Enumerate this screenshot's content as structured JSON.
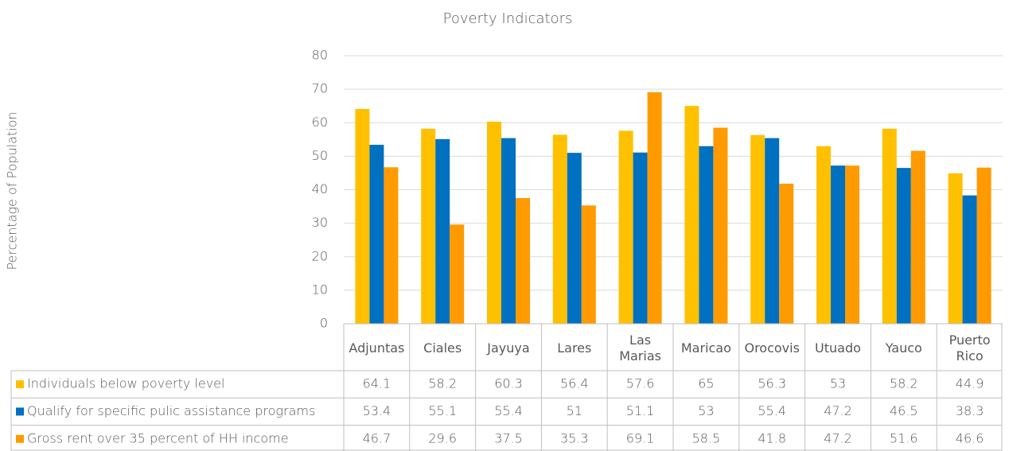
{
  "chart_data": {
    "type": "bar",
    "title": "Poverty Indicators",
    "y_label": "Percentage of Population",
    "categories": [
      "Adjuntas",
      "Ciales",
      "Jayuya",
      "Lares",
      "Las Marias",
      "Maricao",
      "Orocovis",
      "Utuado",
      "Yauco",
      "Puerto Rico"
    ],
    "series": [
      {
        "name": "Individuals below poverty level",
        "color": "#ffc000",
        "values": [
          64.1,
          58.2,
          60.3,
          56.4,
          57.6,
          65,
          56.3,
          53,
          58.2,
          44.9
        ]
      },
      {
        "name": "Qualify for specific pulic assistance programs",
        "color": "#0070c0",
        "values": [
          53.4,
          55.1,
          55.4,
          51,
          51.1,
          53,
          55.4,
          47.2,
          46.5,
          38.3
        ]
      },
      {
        "name": "Gross rent over 35 percent of HH income",
        "color": "#ff9a00",
        "values": [
          46.7,
          29.6,
          37.5,
          35.3,
          69.1,
          58.5,
          41.8,
          47.2,
          51.6,
          46.6
        ]
      }
    ],
    "ylim": [
      0,
      80
    ],
    "yticks": [
      0,
      10,
      20,
      30,
      40,
      50,
      60,
      70,
      80
    ],
    "grid": true
  }
}
